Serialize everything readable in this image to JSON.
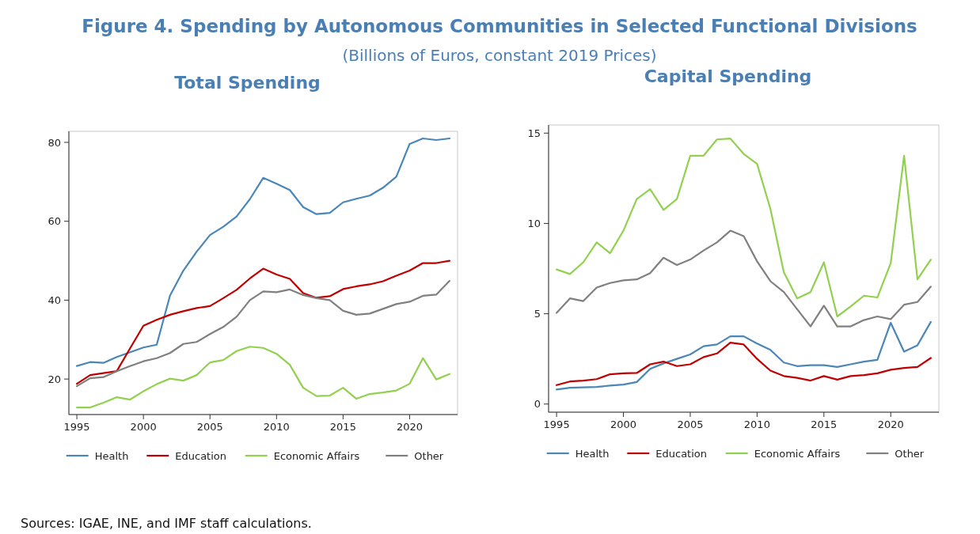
{
  "chart_data": [
    {
      "type": "line",
      "title": "Figure 4. Spending by Autonomous Communities in Selected Functional Divisions",
      "subtitle": "(Billions of Euros, constant 2019 Prices)",
      "annotations": [
        "Total Spending",
        "Sources: IGAE, INE, and IMF staff calculations."
      ],
      "legend": "bottom",
      "grid": false,
      "x": [
        1995,
        1996,
        1997,
        1998,
        1999,
        2000,
        2001,
        2002,
        2003,
        2004,
        2005,
        2006,
        2007,
        2008,
        2009,
        2010,
        2011,
        2012,
        2013,
        2014,
        2015,
        2016,
        2017,
        2018,
        2019,
        2020,
        2021,
        2022,
        2023
      ],
      "xlim": [
        1994.4,
        2023.6
      ],
      "xticks": [
        1995,
        2000,
        2005,
        2010,
        2015,
        2020
      ],
      "ylim": [
        11,
        82.8
      ],
      "yticks": [
        20,
        40,
        60,
        80
      ],
      "series": [
        {
          "name": "Health",
          "color": "#4a86b8",
          "values": [
            23.3,
            24.3,
            24.1,
            25.6,
            26.8,
            28,
            28.7,
            41.2,
            47.5,
            52.3,
            56.5,
            58.6,
            61.2,
            65.6,
            71,
            69.5,
            67.9,
            63.6,
            61.8,
            62.1,
            64.8,
            65.7,
            66.5,
            68.5,
            71.3,
            79.6,
            81,
            80.6,
            81
          ]
        },
        {
          "name": "Education",
          "color": "#c00000",
          "values": [
            18.8,
            21,
            21.5,
            22,
            27.8,
            33.5,
            35,
            36.3,
            37.2,
            38,
            38.5,
            40.5,
            42.6,
            45.5,
            48,
            46.5,
            45.4,
            41.8,
            40.6,
            41,
            42.8,
            43.5,
            44,
            44.8,
            46.2,
            47.5,
            49.4,
            49.4,
            50
          ]
        },
        {
          "name": "Economic Affairs",
          "color": "#92d050",
          "values": [
            12.8,
            12.8,
            14,
            15.4,
            14.8,
            16.9,
            18.7,
            20.1,
            19.6,
            21,
            24.2,
            24.8,
            27.1,
            28.2,
            27.9,
            26.4,
            23.6,
            17.8,
            15.7,
            15.8,
            17.8,
            15,
            16.2,
            16.6,
            17.1,
            18.8,
            25.3,
            19.9,
            21.3
          ]
        },
        {
          "name": "Other",
          "color": "#808080",
          "values": [
            18.2,
            20.2,
            20.5,
            22,
            23.3,
            24.5,
            25.3,
            26.6,
            28.9,
            29.4,
            31.4,
            33.2,
            35.8,
            40,
            42.2,
            42,
            42.7,
            41.3,
            40.5,
            40,
            37.3,
            36.3,
            36.6,
            37.8,
            39,
            39.6,
            41.1,
            41.4,
            44.9
          ]
        }
      ]
    },
    {
      "type": "line",
      "title": "Capital Spending",
      "legend": "bottom",
      "grid": false,
      "x": [
        1995,
        1996,
        1997,
        1998,
        1999,
        2000,
        2001,
        2002,
        2003,
        2004,
        2005,
        2006,
        2007,
        2008,
        2009,
        2010,
        2011,
        2012,
        2013,
        2014,
        2015,
        2016,
        2017,
        2018,
        2019,
        2020,
        2021,
        2022,
        2023
      ],
      "xlim": [
        1994.4,
        2023.6
      ],
      "xticks": [
        1995,
        2000,
        2005,
        2010,
        2015,
        2020
      ],
      "ylim": [
        -0.45,
        15.45
      ],
      "yticks": [
        0,
        5,
        10,
        15
      ],
      "series": [
        {
          "name": "Health",
          "color": "#4a86b8",
          "values": [
            0.8,
            0.9,
            0.92,
            0.95,
            1.02,
            1.08,
            1.22,
            1.95,
            2.25,
            2.5,
            2.75,
            3.2,
            3.3,
            3.75,
            3.75,
            3.35,
            3.0,
            2.3,
            2.1,
            2.15,
            2.15,
            2.05,
            2.2,
            2.35,
            2.45,
            4.5,
            2.9,
            3.25,
            4.55
          ]
        },
        {
          "name": "Education",
          "color": "#c00000",
          "values": [
            1.05,
            1.25,
            1.3,
            1.38,
            1.65,
            1.7,
            1.72,
            2.2,
            2.35,
            2.1,
            2.2,
            2.6,
            2.8,
            3.4,
            3.3,
            2.5,
            1.85,
            1.55,
            1.45,
            1.3,
            1.55,
            1.35,
            1.55,
            1.6,
            1.7,
            1.9,
            2.0,
            2.05,
            2.55
          ]
        },
        {
          "name": "Economic Affairs",
          "color": "#92d050",
          "values": [
            7.45,
            7.2,
            7.85,
            8.95,
            8.35,
            9.6,
            11.35,
            11.9,
            10.75,
            11.35,
            13.75,
            13.75,
            14.65,
            14.7,
            13.85,
            13.3,
            10.8,
            7.3,
            5.85,
            6.2,
            7.85,
            4.85,
            5.4,
            6.0,
            5.9,
            7.8,
            13.75,
            6.9,
            8.0
          ]
        },
        {
          "name": "Other",
          "color": "#808080",
          "values": [
            5.05,
            5.85,
            5.7,
            6.45,
            6.7,
            6.85,
            6.9,
            7.25,
            8.1,
            7.7,
            8.0,
            8.5,
            8.95,
            9.6,
            9.3,
            7.9,
            6.8,
            6.2,
            5.25,
            4.3,
            5.45,
            4.3,
            4.3,
            4.65,
            4.85,
            4.7,
            5.5,
            5.65,
            6.5
          ]
        }
      ]
    }
  ]
}
